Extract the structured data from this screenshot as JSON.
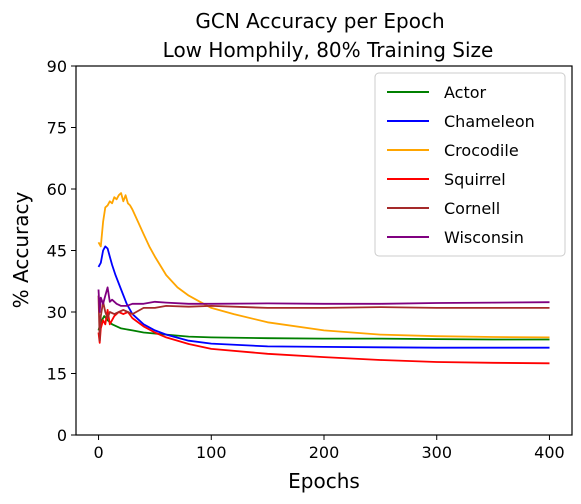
{
  "chart_data": {
    "type": "line",
    "title": "GCN Accuracy per Epoch",
    "subtitle": "Low Homphily, 80% Training Size",
    "xlabel": "Epochs",
    "ylabel": "% Accuracy",
    "xlim": [
      -20,
      420
    ],
    "ylim": [
      0,
      90
    ],
    "xticks": [
      0,
      100,
      200,
      300,
      400
    ],
    "yticks": [
      0,
      15,
      30,
      45,
      60,
      75,
      90
    ],
    "grid": false,
    "legend_position": "top-right",
    "series": [
      {
        "name": "Actor",
        "color": "#008000",
        "x": [
          0,
          2,
          5,
          8,
          12,
          20,
          30,
          40,
          60,
          80,
          100,
          150,
          200,
          250,
          300,
          350,
          400
        ],
        "y": [
          25.5,
          27.5,
          29.0,
          28.0,
          27.0,
          26.0,
          25.5,
          25.0,
          24.5,
          24.0,
          23.8,
          23.6,
          23.5,
          23.5,
          23.4,
          23.3,
          23.3
        ]
      },
      {
        "name": "Chameleon",
        "color": "#0000ff",
        "x": [
          0,
          2,
          4,
          6,
          8,
          10,
          12,
          15,
          20,
          25,
          30,
          40,
          50,
          60,
          80,
          100,
          150,
          200,
          250,
          300,
          350,
          400
        ],
        "y": [
          41.0,
          42.0,
          45.0,
          46.0,
          45.5,
          43.5,
          41.5,
          39.0,
          35.5,
          32.0,
          29.5,
          27.0,
          25.5,
          24.5,
          23.0,
          22.3,
          21.6,
          21.5,
          21.4,
          21.3,
          21.3,
          21.3
        ]
      },
      {
        "name": "Crocodile",
        "color": "#ffa500",
        "x": [
          0,
          2,
          4,
          6,
          8,
          10,
          12,
          14,
          16,
          18,
          20,
          22,
          24,
          26,
          28,
          30,
          35,
          40,
          45,
          50,
          60,
          70,
          80,
          90,
          100,
          120,
          150,
          200,
          250,
          300,
          350,
          400
        ],
        "y": [
          47.0,
          46.0,
          52.0,
          55.5,
          56.0,
          57.0,
          56.5,
          58.0,
          57.5,
          58.5,
          59.0,
          57.0,
          58.5,
          56.5,
          56.0,
          55.0,
          52.0,
          49.0,
          46.0,
          43.5,
          39.0,
          36.0,
          34.0,
          32.5,
          31.0,
          29.5,
          27.5,
          25.5,
          24.5,
          24.1,
          23.9,
          23.8
        ]
      },
      {
        "name": "Squirrel",
        "color": "#ff0000",
        "x": [
          0,
          1,
          2,
          4,
          6,
          8,
          10,
          14,
          18,
          22,
          26,
          30,
          40,
          50,
          60,
          80,
          100,
          150,
          200,
          250,
          300,
          350,
          400
        ],
        "y": [
          25.0,
          22.5,
          26.0,
          28.0,
          27.0,
          30.5,
          27.0,
          29.0,
          30.0,
          29.5,
          30.0,
          28.5,
          26.5,
          25.0,
          23.8,
          22.2,
          21.0,
          19.8,
          19.0,
          18.3,
          17.8,
          17.6,
          17.5
        ]
      },
      {
        "name": "Cornell",
        "color": "#a52a2a",
        "x": [
          0,
          1,
          2,
          4,
          6,
          8,
          10,
          14,
          18,
          22,
          26,
          30,
          40,
          50,
          60,
          80,
          100,
          150,
          200,
          250,
          300,
          350,
          400
        ],
        "y": [
          34.0,
          23.0,
          29.0,
          32.5,
          30.0,
          28.5,
          30.0,
          29.5,
          30.0,
          30.5,
          30.0,
          29.5,
          31.0,
          31.0,
          31.5,
          31.3,
          31.5,
          31.0,
          31.0,
          31.2,
          31.0,
          31.0,
          31.0
        ]
      },
      {
        "name": "Wisconsin",
        "color": "#800080",
        "x": [
          0,
          1,
          2,
          4,
          6,
          8,
          10,
          12,
          16,
          20,
          25,
          30,
          40,
          50,
          60,
          80,
          100,
          150,
          200,
          250,
          300,
          350,
          400
        ],
        "y": [
          35.5,
          30.0,
          33.5,
          32.0,
          34.0,
          36.0,
          32.5,
          33.0,
          32.0,
          31.5,
          31.5,
          32.0,
          32.0,
          32.5,
          32.3,
          32.0,
          32.0,
          32.1,
          32.0,
          32.0,
          32.2,
          32.3,
          32.4
        ]
      }
    ]
  }
}
